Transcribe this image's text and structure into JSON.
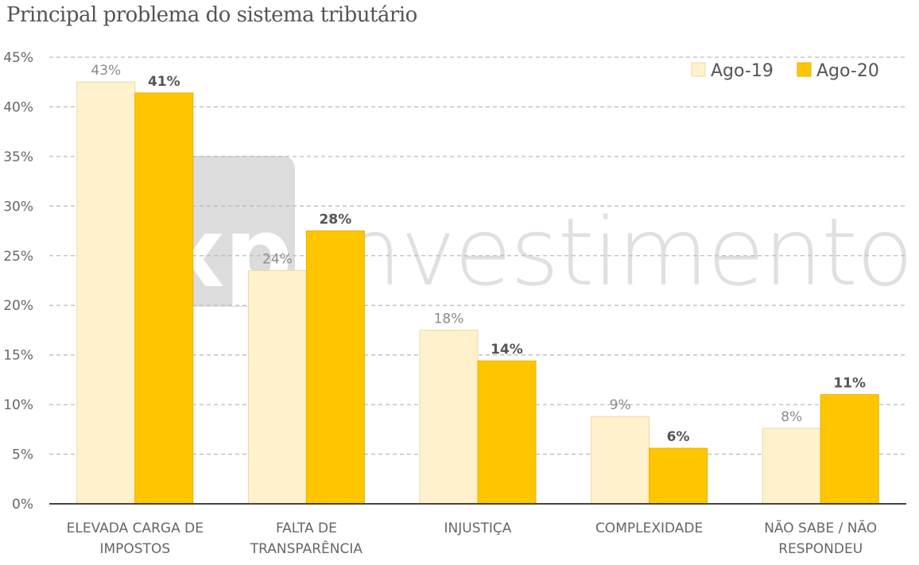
{
  "chart_data": {
    "type": "bar",
    "title": "Principal problema do sistema tributário",
    "xlabel": "",
    "ylabel": "",
    "ylim": [
      0,
      45
    ],
    "yticks": [
      0,
      5,
      10,
      15,
      20,
      25,
      30,
      35,
      40,
      45
    ],
    "ytick_labels": [
      "0%",
      "5%",
      "10%",
      "15%",
      "20%",
      "25%",
      "30%",
      "35%",
      "40%",
      "45%"
    ],
    "grid": true,
    "legend_position": "top-right",
    "categories": [
      [
        "ELEVADA CARGA DE",
        "IMPOSTOS"
      ],
      [
        "FALTA DE",
        "TRANSPARÊNCIA"
      ],
      [
        "INJUSTIÇA"
      ],
      [
        "COMPLEXIDADE"
      ],
      [
        "NÃO SABE / NÃO",
        "RESPONDEU"
      ]
    ],
    "series": [
      {
        "name": "Ago-19",
        "color": "#FFF1CC",
        "stroke": "#E8D9A8",
        "label_color": "#8a8a8a",
        "label_weight": "normal",
        "values": [
          42.5,
          23.5,
          17.5,
          8.8,
          7.6
        ],
        "labels": [
          "43%",
          "24%",
          "18%",
          "9%",
          "8%"
        ]
      },
      {
        "name": "Ago-20",
        "color": "#FFC600",
        "stroke": "#E6B000",
        "label_color": "#555555",
        "label_weight": "bold",
        "values": [
          41.4,
          27.5,
          14.4,
          5.6,
          11.0
        ],
        "labels": [
          "41%",
          "28%",
          "14%",
          "6%",
          "11%"
        ]
      }
    ]
  },
  "watermark": "xp investimentos"
}
